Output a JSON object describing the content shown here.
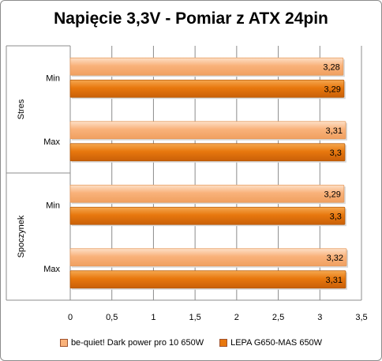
{
  "chart_data": {
    "type": "bar",
    "orientation": "horizontal",
    "title": "Napięcie 3,3V -  Pomiar z ATX 24pin",
    "xlim": [
      0,
      3.5
    ],
    "xticks": [
      "0",
      "0,5",
      "1",
      "1,5",
      "2",
      "2,5",
      "3",
      "3,5"
    ],
    "groups": [
      {
        "label": "Stres",
        "categories": [
          {
            "label": "Min",
            "values": [
              3.28,
              3.29
            ],
            "value_labels": [
              "3,28",
              "3,29"
            ]
          },
          {
            "label": "Max",
            "values": [
              3.31,
              3.3
            ],
            "value_labels": [
              "3,31",
              "3,3"
            ]
          }
        ]
      },
      {
        "label": "Spoczynek",
        "categories": [
          {
            "label": "Min",
            "values": [
              3.29,
              3.3
            ],
            "value_labels": [
              "3,29",
              "3,3"
            ]
          },
          {
            "label": "Max",
            "values": [
              3.32,
              3.31
            ],
            "value_labels": [
              "3,32",
              "3,31"
            ]
          }
        ]
      }
    ],
    "series": [
      {
        "name": "be-quiet! Dark  power pro 10  650W",
        "color": "#f9b27a"
      },
      {
        "name": "LEPA G650-MAS 650W",
        "color": "#e8780e"
      }
    ],
    "legend_position": "bottom",
    "grid": true
  }
}
